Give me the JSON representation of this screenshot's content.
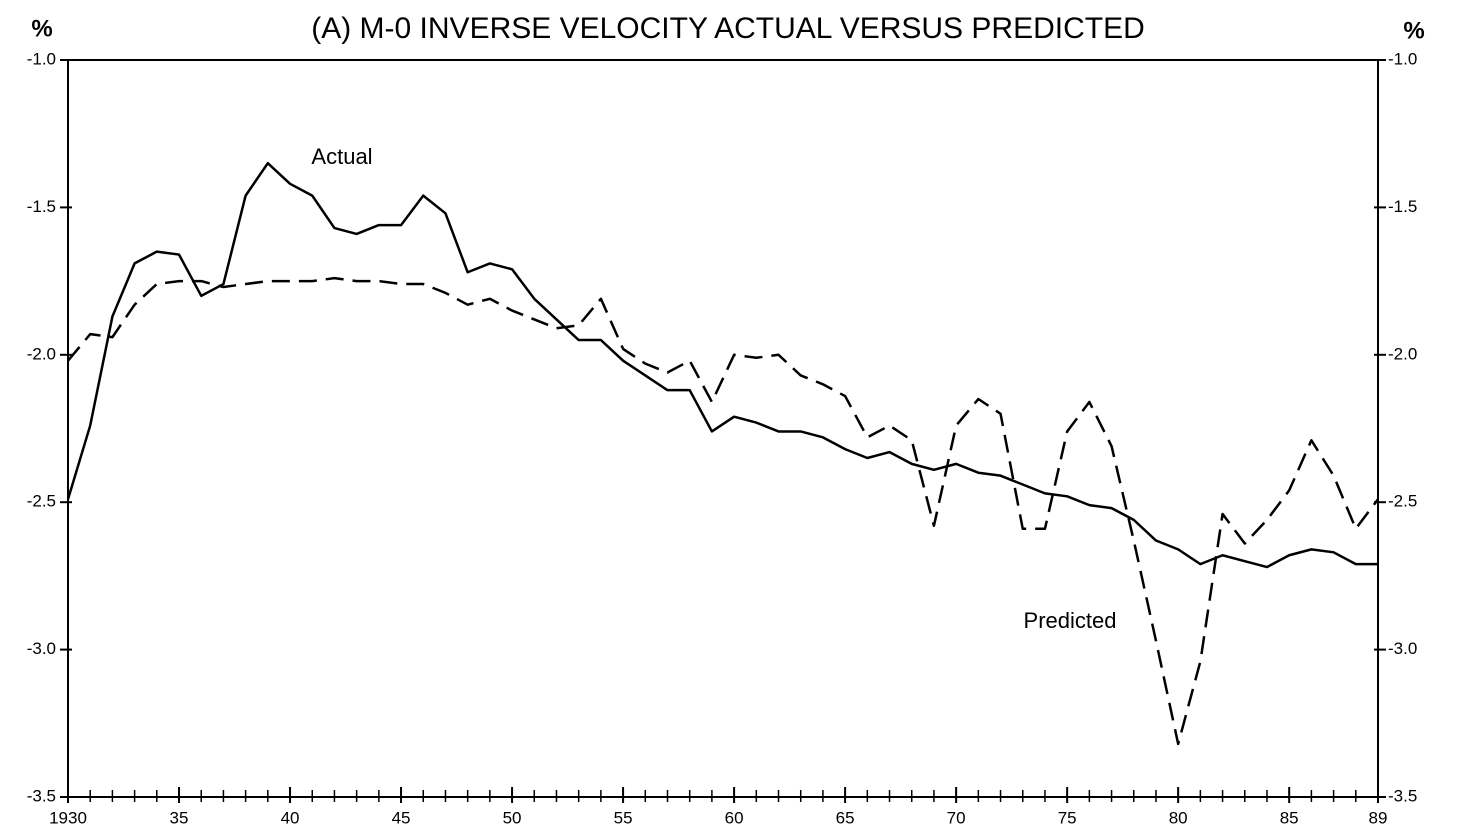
{
  "chart_data": {
    "type": "line",
    "title": "(A)  M-0 INVERSE VELOCITY  ACTUAL VERSUS PREDICTED",
    "y_label": "%",
    "y2_label": "%",
    "x": [
      1930,
      1931,
      1932,
      1933,
      1934,
      1935,
      1936,
      1937,
      1938,
      1939,
      1940,
      1941,
      1942,
      1943,
      1944,
      1945,
      1946,
      1947,
      1948,
      1949,
      1950,
      1951,
      1952,
      1953,
      1954,
      1955,
      1956,
      1957,
      1958,
      1959,
      1960,
      1961,
      1962,
      1963,
      1964,
      1965,
      1966,
      1967,
      1968,
      1969,
      1970,
      1971,
      1972,
      1973,
      1974,
      1975,
      1976,
      1977,
      1978,
      1979,
      1980,
      1981,
      1982,
      1983,
      1984,
      1985,
      1986,
      1987,
      1988,
      1989
    ],
    "series": [
      {
        "name": "Actual",
        "color": "#000000",
        "linestyle": "solid",
        "values": [
          -2.49,
          -2.24,
          -1.87,
          -1.69,
          -1.65,
          -1.66,
          -1.8,
          -1.76,
          -1.46,
          -1.35,
          -1.42,
          -1.46,
          -1.57,
          -1.59,
          -1.56,
          -1.56,
          -1.46,
          -1.52,
          -1.72,
          -1.69,
          -1.71,
          -1.81,
          -1.88,
          -1.95,
          -1.95,
          -2.02,
          -2.07,
          -2.12,
          -2.12,
          -2.26,
          -2.21,
          -2.23,
          -2.26,
          -2.26,
          -2.28,
          -2.32,
          -2.35,
          -2.33,
          -2.37,
          -2.39,
          -2.37,
          -2.4,
          -2.41,
          -2.44,
          -2.47,
          -2.48,
          -2.51,
          -2.52,
          -2.56,
          -2.63,
          -2.66,
          -2.71,
          -2.68,
          -2.7,
          -2.72,
          -2.68,
          -2.66,
          -2.67,
          -2.71,
          -2.71
        ]
      },
      {
        "name": "Predicted",
        "color": "#000000",
        "linestyle": "dashed",
        "values": [
          -2.02,
          -1.93,
          -1.94,
          -1.83,
          -1.76,
          -1.75,
          -1.75,
          -1.77,
          -1.76,
          -1.75,
          -1.75,
          -1.75,
          -1.74,
          -1.75,
          -1.75,
          -1.76,
          -1.76,
          -1.79,
          -1.83,
          -1.81,
          -1.85,
          -1.88,
          -1.91,
          -1.9,
          -1.81,
          -1.98,
          -2.03,
          -2.06,
          -2.02,
          -2.16,
          -2.0,
          -2.01,
          -2.0,
          -2.07,
          -2.1,
          -2.14,
          -2.28,
          -2.24,
          -2.29,
          -2.58,
          -2.24,
          -2.15,
          -2.2,
          -2.59,
          -2.59,
          -2.26,
          -2.16,
          -2.31,
          -2.63,
          -2.97,
          -3.32,
          -3.04,
          -2.54,
          -2.64,
          -2.56,
          -2.46,
          -2.29,
          -2.41,
          -2.59,
          -2.49
        ]
      }
    ],
    "xlim": [
      1930,
      1989
    ],
    "xticks": [
      1930,
      {
        "value": 1935,
        "label": "35"
      },
      {
        "value": 1940,
        "label": "40"
      },
      {
        "value": 1945,
        "label": "45"
      },
      {
        "value": 1950,
        "label": "50"
      },
      {
        "value": 1955,
        "label": "55"
      },
      {
        "value": 1960,
        "label": "60"
      },
      {
        "value": 1965,
        "label": "65"
      },
      {
        "value": 1970,
        "label": "70"
      },
      {
        "value": 1975,
        "label": "75"
      },
      {
        "value": 1980,
        "label": "80"
      },
      {
        "value": 1985,
        "label": "85"
      },
      {
        "value": 1989,
        "label": "89"
      }
    ],
    "ylim": [
      -3.5,
      -1.0
    ],
    "yticks": [
      {
        "value": -1.0,
        "label": "-1.0"
      },
      -1.5,
      {
        "value": -2.0,
        "label": "-2.0"
      },
      -2.5,
      {
        "value": -3.0,
        "label": "-3.0"
      },
      -3.5
    ],
    "grid": false
  }
}
